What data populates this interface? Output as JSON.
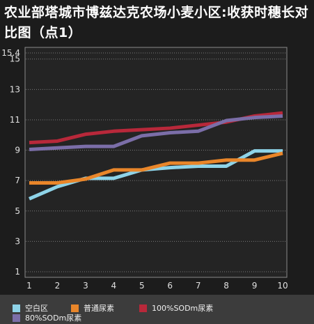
{
  "chart_data": {
    "type": "line",
    "title": "农业部塔城市博兹达克农场小麦小区:收获时穗长对比图（点1）",
    "x": [
      1,
      2,
      3,
      4,
      5,
      6,
      7,
      8,
      9,
      10
    ],
    "yticks": [
      "1",
      "3",
      "5",
      "7",
      "9",
      "11",
      "13",
      "15",
      "15.4"
    ],
    "ylim": [
      1,
      15.4
    ],
    "xlim": [
      1,
      10
    ],
    "grid": true,
    "legend_position": "bottom",
    "series": [
      {
        "name": "空白区",
        "color": "#8ed3e8",
        "values": [
          5.8,
          6.6,
          7.15,
          7.15,
          7.7,
          7.85,
          7.95,
          7.95,
          8.95,
          8.95
        ]
      },
      {
        "name": "普通尿素",
        "color": "#e9862a",
        "values": [
          6.85,
          6.85,
          7.1,
          7.7,
          7.7,
          8.15,
          8.15,
          8.35,
          8.35,
          8.8
        ]
      },
      {
        "name": "100%SODm尿素",
        "color": "#b8283a",
        "values": [
          9.5,
          9.6,
          10.05,
          10.25,
          10.35,
          10.45,
          10.65,
          10.85,
          11.25,
          11.45
        ]
      },
      {
        "name": "80%SODm尿素",
        "color": "#7b6ea8",
        "values": [
          9.05,
          9.15,
          9.25,
          9.25,
          9.95,
          10.15,
          10.25,
          10.95,
          11.15,
          11.25
        ]
      }
    ]
  }
}
